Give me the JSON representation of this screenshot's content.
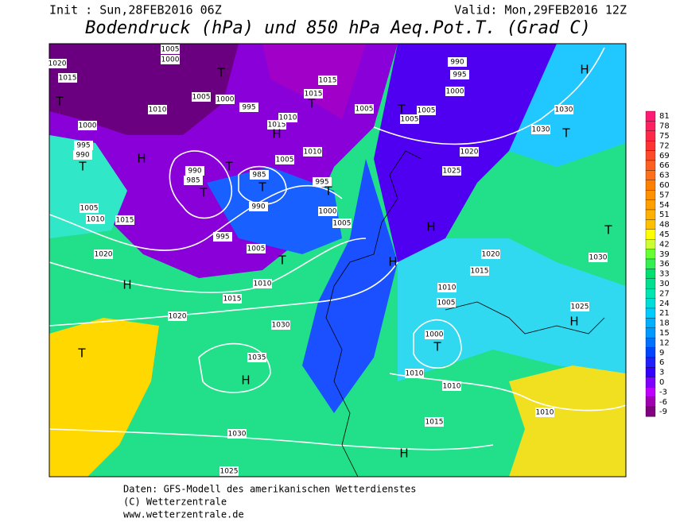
{
  "header": {
    "init": "Init : Sun,28FEB2016 06Z",
    "valid": "Valid: Mon,29FEB2016 12Z",
    "title": "Bodendruck (hPa) und 850 hPa Aeq.Pot.T. (Grad C)"
  },
  "colorbar": {
    "ticks": [
      81,
      78,
      75,
      72,
      69,
      66,
      63,
      60,
      57,
      54,
      51,
      48,
      45,
      42,
      39,
      36,
      33,
      30,
      27,
      24,
      21,
      18,
      15,
      12,
      9,
      6,
      3,
      0,
      -3,
      -6,
      -9
    ]
  },
  "map": {
    "pressure_labels": [
      "1020",
      "1015",
      "1000",
      "1005",
      "1010",
      "1000",
      "995",
      "990",
      "1005",
      "1010",
      "1015",
      "1020",
      "1015",
      "1010",
      "1005",
      "995",
      "990",
      "985",
      "990",
      "985",
      "995",
      "1000",
      "1005",
      "1005",
      "1010",
      "1015",
      "1010",
      "995",
      "1000",
      "1005",
      "1015",
      "1015",
      "1005",
      "1005",
      "1005",
      "1000",
      "995",
      "990",
      "1030",
      "1030",
      "1020",
      "1025",
      "1020",
      "1015",
      "1030",
      "1010",
      "1005",
      "1000",
      "1025",
      "1030",
      "1035",
      "1020",
      "1010",
      "1010",
      "1015",
      "1010",
      "1030",
      "1025"
    ],
    "centers": [
      "T",
      "T",
      "T",
      "H",
      "T",
      "T",
      "T",
      "T",
      "T",
      "H",
      "T",
      "T",
      "H",
      "H",
      "H",
      "T",
      "H",
      "T",
      "H",
      "T",
      "T",
      "H",
      "H"
    ]
  },
  "footer": {
    "lines": [
      "Daten: GFS-Modell des amerikanischen Wetterdienstes",
      "(C) Wetterzentrale",
      "www.wetterzentrale.de"
    ]
  }
}
